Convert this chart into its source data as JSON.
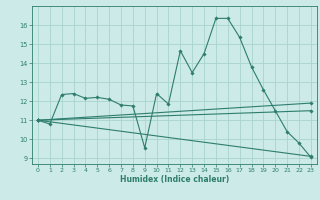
{
  "title": "",
  "xlabel": "Humidex (Indice chaleur)",
  "bg_color": "#cceae7",
  "line_color": "#2e7d6e",
  "grid_color": "#aad4ce",
  "xlim": [
    -0.5,
    23.5
  ],
  "ylim": [
    8.7,
    17.0
  ],
  "yticks": [
    9,
    10,
    11,
    12,
    13,
    14,
    15,
    16
  ],
  "xticks": [
    0,
    1,
    2,
    3,
    4,
    5,
    6,
    7,
    8,
    9,
    10,
    11,
    12,
    13,
    14,
    15,
    16,
    17,
    18,
    19,
    20,
    21,
    22,
    23
  ],
  "series": [
    {
      "x": [
        0,
        1,
        2,
        3,
        4,
        5,
        6,
        7,
        8,
        9,
        10,
        11,
        12,
        13,
        14,
        15,
        16,
        17,
        18,
        19,
        20,
        21,
        22,
        23
      ],
      "y": [
        11.0,
        10.8,
        12.35,
        12.4,
        12.15,
        12.2,
        12.1,
        11.8,
        11.75,
        9.55,
        12.4,
        11.85,
        14.65,
        13.5,
        14.5,
        16.35,
        16.35,
        15.35,
        13.8,
        12.6,
        11.5,
        10.4,
        9.8,
        9.05
      ]
    },
    {
      "x": [
        0,
        23
      ],
      "y": [
        11.0,
        9.1
      ]
    },
    {
      "x": [
        0,
        23
      ],
      "y": [
        11.0,
        11.9
      ]
    },
    {
      "x": [
        0,
        23
      ],
      "y": [
        11.0,
        11.5
      ]
    }
  ]
}
